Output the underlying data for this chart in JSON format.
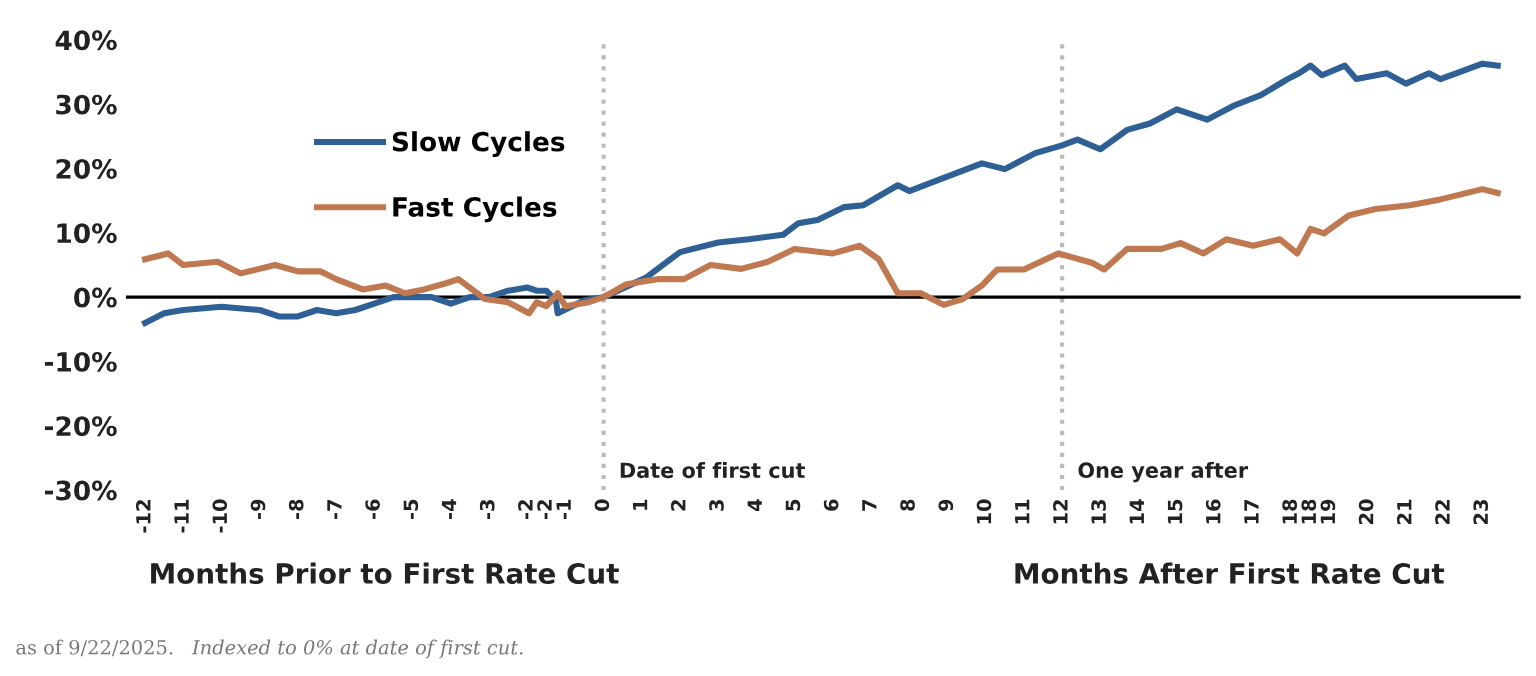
{
  "chart_data": {
    "type": "line",
    "series": [
      {
        "name": "Slow Cycles",
        "color": "#2e6096",
        "x": [
          -12,
          -11.5,
          -11,
          -10,
          -9,
          -8.5,
          -8,
          -7.5,
          -7,
          -6.5,
          -6,
          -5.5,
          -5,
          -4.5,
          -4,
          -3.5,
          -3,
          -2.5,
          -2,
          -1.75,
          -1.5,
          -1.25,
          -1.2,
          -0.5,
          0,
          1.1,
          2,
          3,
          3.8,
          4.7,
          5.1,
          5.6,
          6.3,
          6.8,
          7.7,
          8,
          8.8,
          9.9,
          10.5,
          11.3,
          12,
          12.4,
          13,
          13.7,
          14.3,
          15,
          15.8,
          16.5,
          17.2,
          17.9,
          18.2,
          18.5,
          18.8,
          19.4,
          19.7,
          20.5,
          21,
          21.6,
          21.9,
          23,
          23.4
        ],
        "values": [
          -4,
          -2.5,
          -2,
          -1.5,
          -2,
          -3,
          -3,
          -2,
          -2.5,
          -2,
          -1,
          0,
          0,
          0,
          -1,
          0,
          0,
          1,
          1.5,
          1,
          1,
          -0.5,
          -2.5,
          -0.5,
          0,
          3,
          7,
          8.5,
          9,
          9.7,
          11.5,
          12,
          14,
          14.3,
          17.4,
          16.5,
          18.3,
          20.8,
          19.9,
          22.4,
          23.6,
          24.5,
          23,
          26,
          27,
          29.2,
          27.6,
          29.8,
          31.4,
          33.9,
          34.8,
          36,
          34.5,
          36,
          33.9,
          34.8,
          33.2,
          34.8,
          33.9,
          36.3,
          36
        ]
      },
      {
        "name": "Fast Cycles",
        "color": "#c07850",
        "x": [
          -12,
          -11.4,
          -11,
          -10.1,
          -9.5,
          -8.6,
          -8,
          -7.4,
          -7,
          -6.3,
          -5.7,
          -5.2,
          -4.7,
          -4.1,
          -3.8,
          -3.1,
          -2.5,
          -1.95,
          -1.75,
          -1.5,
          -1.2,
          -1,
          -0.4,
          0,
          0.6,
          1.4,
          2.1,
          2.8,
          3.6,
          4.3,
          5,
          6,
          6.7,
          7.2,
          7.7,
          8.3,
          8.9,
          9.4,
          9.9,
          10.3,
          11,
          11.9,
          12.8,
          13.1,
          13.7,
          14.6,
          15.1,
          15.7,
          16.3,
          17,
          17.7,
          18.15,
          18.5,
          18.85,
          19.5,
          20.2,
          21.1,
          21.9,
          23,
          23.4
        ],
        "values": [
          5.9,
          6.8,
          5,
          5.5,
          3.7,
          5,
          4,
          4,
          2.8,
          1.2,
          1.8,
          0.6,
          1.2,
          2.2,
          2.8,
          -0.3,
          -0.8,
          -2.5,
          -0.8,
          -1.4,
          0.6,
          -1.4,
          -0.8,
          0,
          2,
          2.8,
          2.8,
          5,
          4.4,
          5.5,
          7.5,
          6.8,
          8,
          5.9,
          0.6,
          0.6,
          -1.2,
          -0.3,
          1.8,
          4.3,
          4.3,
          6.8,
          5.3,
          4.3,
          7.5,
          7.5,
          8.4,
          6.8,
          9,
          8,
          9,
          6.8,
          10.6,
          9.9,
          12.7,
          13.7,
          14.3,
          15.2,
          16.8,
          16.2
        ]
      }
    ],
    "xlim": [
      -12.5,
      24
    ],
    "xticks": [
      -12,
      -11,
      -10,
      -9,
      -8,
      -7,
      -6,
      -5,
      -4,
      -3,
      -2,
      {
        "value": -1.5,
        "label": "-2"
      },
      -1,
      0,
      1,
      2,
      3,
      4,
      5,
      6,
      7,
      8,
      9,
      10,
      11,
      12,
      13,
      14,
      15,
      16,
      17,
      18,
      {
        "value": 18.5,
        "label": "18"
      },
      19,
      20,
      21,
      22,
      23
    ],
    "ylim": [
      -30,
      40
    ],
    "yticks": [
      {
        "value": -30,
        "label": "-30%"
      },
      {
        "value": -20,
        "label": "-20%"
      },
      {
        "value": -10,
        "label": "-10%"
      },
      {
        "value": 0,
        "label": "0%"
      },
      {
        "value": 10,
        "label": "10%"
      },
      {
        "value": 20,
        "label": "20%"
      },
      {
        "value": 30,
        "label": "30%"
      },
      {
        "value": 40,
        "label": "40%"
      }
    ],
    "ref_lines": [
      {
        "axis": "y",
        "value": 0,
        "color": "#000000",
        "line_style": "solid"
      },
      {
        "axis": "x",
        "value": 0,
        "label": "Date of first cut",
        "color": "#bbbbbb",
        "line_style": "dotted"
      },
      {
        "axis": "x",
        "value": 12,
        "label": "One year after",
        "color": "#bbbbbb",
        "line_style": "dotted"
      }
    ],
    "annotations": [
      "Months Prior to First Rate Cut",
      "Months After First Rate Cut",
      "as of 9/22/2025.",
      "Indexed to 0% at date of first cut."
    ],
    "legend": "top left",
    "grid": false,
    "line_style": "solid",
    "marker": "none"
  }
}
